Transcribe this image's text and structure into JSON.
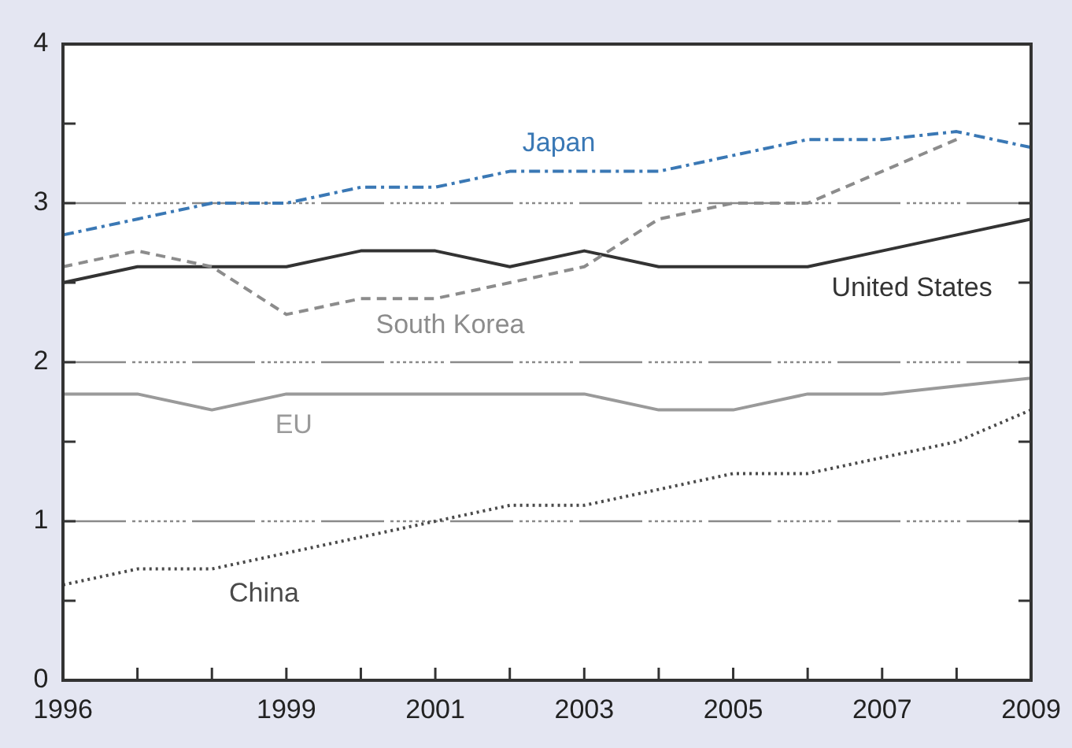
{
  "chart_data": {
    "type": "line",
    "x": [
      1996,
      1997,
      1998,
      1999,
      2000,
      2001,
      2002,
      2003,
      2004,
      2005,
      2006,
      2007,
      2008,
      2009
    ],
    "xlim": [
      1996,
      2009
    ],
    "xticks": [
      1996,
      {
        "value": 1997,
        "label": null
      },
      {
        "value": 1998,
        "label": null
      },
      1999,
      {
        "value": 2000,
        "label": null
      },
      2001,
      {
        "value": 2002,
        "label": null
      },
      2003,
      {
        "value": 2004,
        "label": null
      },
      2005,
      {
        "value": 2006,
        "label": null
      },
      2007,
      {
        "value": 2008,
        "label": null
      },
      2009
    ],
    "ylim": [
      0,
      4
    ],
    "yticks": [
      0,
      {
        "value": 0.5,
        "label": null
      },
      1,
      {
        "value": 1.5,
        "label": null
      },
      2,
      {
        "value": 2.5,
        "label": null
      },
      3,
      {
        "value": 3.5,
        "label": null
      },
      4
    ],
    "grid": "y",
    "series": [
      {
        "name": "Japan",
        "color": "#3a78b5",
        "line_style": "dashed",
        "values": [
          2.8,
          2.9,
          3.0,
          3.0,
          3.1,
          3.1,
          3.2,
          3.2,
          3.2,
          3.3,
          3.4,
          3.4,
          3.45,
          3.35
        ]
      },
      {
        "name": "United States",
        "color": "#333333",
        "line_style": "solid",
        "values": [
          2.5,
          2.6,
          2.6,
          2.6,
          2.7,
          2.7,
          2.6,
          2.7,
          2.6,
          2.6,
          2.6,
          2.7,
          2.8,
          2.9
        ]
      },
      {
        "name": "South Korea",
        "color": "#8c8c8c",
        "line_style": "dashed",
        "values": [
          2.6,
          2.7,
          2.6,
          2.3,
          2.4,
          2.4,
          2.5,
          2.6,
          2.9,
          3.0,
          3.0,
          3.2,
          3.4,
          null
        ]
      },
      {
        "name": "EU",
        "color": "#9a9a9a",
        "line_style": "solid",
        "values": [
          1.8,
          1.8,
          1.7,
          1.8,
          1.8,
          1.8,
          1.8,
          1.8,
          1.7,
          1.7,
          1.8,
          1.8,
          1.85,
          1.9
        ]
      },
      {
        "name": "China",
        "color": "#4a4a4a",
        "line_style": "dotted",
        "values": [
          0.6,
          0.7,
          0.7,
          0.8,
          0.9,
          1.0,
          1.1,
          1.1,
          1.2,
          1.3,
          1.3,
          1.4,
          1.5,
          1.7
        ]
      }
    ]
  }
}
